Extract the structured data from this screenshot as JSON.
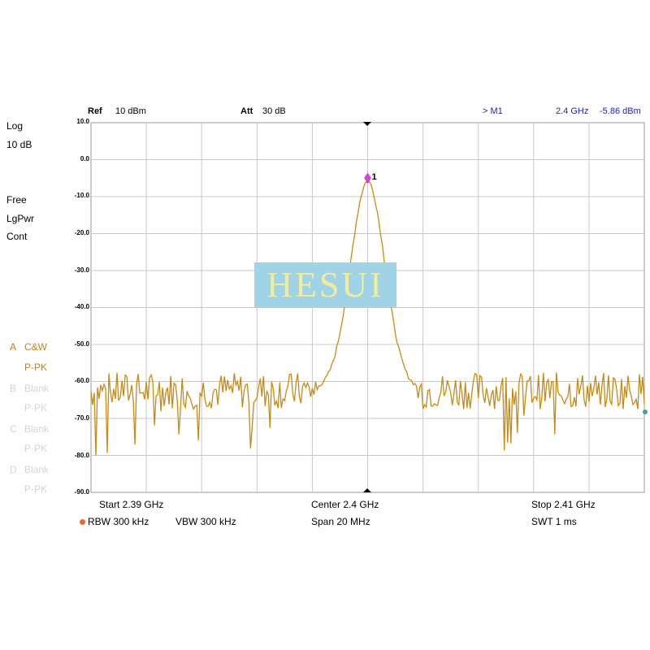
{
  "header": {
    "ref_label": "Ref",
    "ref_value": "10 dBm",
    "att_label": "Att",
    "att_value": "30 dB",
    "marker_label": "> M1",
    "marker_freq": "2.4 GHz",
    "marker_level": "-5.86 dBm"
  },
  "left_panel": {
    "scale_mode": "Log",
    "scale_div": "10 dB",
    "trigger": "Free",
    "detector": "LgPwr",
    "sweep": "Cont",
    "traces": [
      {
        "letter": "A",
        "mode": "C&W",
        "detector": "P-PK",
        "active": true
      },
      {
        "letter": "B",
        "mode": "Blank",
        "detector": "P-PK",
        "active": false
      },
      {
        "letter": "C",
        "mode": "Blank",
        "detector": "P-PK",
        "active": false
      },
      {
        "letter": "D",
        "mode": "Blank",
        "detector": "P-PK",
        "active": false
      }
    ]
  },
  "y_axis_labels": [
    "10.0",
    "0.0",
    "-10.0",
    "-20.0",
    "-30.0",
    "-40.0",
    "-50.0",
    "-60.0",
    "-70.0",
    "-80.0",
    "-90.0"
  ],
  "footer": {
    "start": "Start  2.39 GHz",
    "center": "Center  2.4 GHz",
    "stop": "Stop  2.41 GHz",
    "rbw": "RBW  300 kHz",
    "vbw": "VBW  300 kHz",
    "span": "Span    20 MHz",
    "swt": "SWT   1 ms"
  },
  "marker_number": "1",
  "watermark": "HESUI",
  "colors": {
    "trace": "#c88a10",
    "marker": "#e040e0",
    "grid": "#c8c8c8",
    "header_blue": "#1a1ad0"
  },
  "chart_data": {
    "type": "line",
    "xlabel": "",
    "ylabel": "",
    "x_start_ghz": 2.39,
    "x_stop_ghz": 2.41,
    "ylim": [
      -90,
      10
    ],
    "grid": true,
    "series": [
      {
        "x": [
          2.39,
          2.391,
          2.392,
          2.393,
          2.394,
          2.395,
          2.396,
          2.397,
          2.398,
          2.3985,
          2.399,
          2.3995,
          2.3998,
          2.4,
          2.4002,
          2.4005,
          2.401,
          2.4015,
          2.402,
          2.403,
          2.404,
          2.405,
          2.406,
          2.407,
          2.408,
          2.409,
          2.41
        ],
        "values": [
          -62,
          -66,
          -60,
          -64,
          -61,
          -63,
          -62,
          -64,
          -63,
          -60,
          -50,
          -30,
          -15,
          -5.86,
          -15,
          -30,
          -52,
          -62,
          -64,
          -65,
          -63,
          -62,
          -63,
          -62,
          -64,
          -63,
          -68
        ]
      }
    ],
    "marker": {
      "x": 2.4,
      "y": -5.86,
      "label": "1"
    }
  }
}
